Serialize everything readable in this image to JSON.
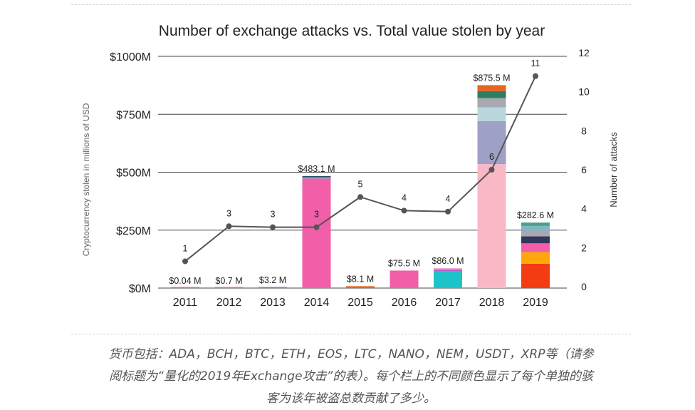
{
  "chart_data": {
    "type": "bar",
    "title": "Number of exchange attacks vs. Total value stolen by year",
    "ylabel": "Cryptocurrency stolen in millions of USD",
    "y2label": "Number of attacks",
    "categories": [
      "2011",
      "2012",
      "2013",
      "2014",
      "2015",
      "2016",
      "2017",
      "2018",
      "2019"
    ],
    "ylim": [
      0,
      1000
    ],
    "y2lim": [
      0,
      12
    ],
    "yticks": [
      {
        "value": 0,
        "label": "$0M"
      },
      {
        "value": 250,
        "label": "$250M"
      },
      {
        "value": 500,
        "label": "$500M"
      },
      {
        "value": 750,
        "label": "$750M"
      },
      {
        "value": 1000,
        "label": "$1000M"
      }
    ],
    "y2ticks": [
      {
        "value": 0,
        "label": "0"
      },
      {
        "value": 2,
        "label": "2"
      },
      {
        "value": 4,
        "label": "4"
      },
      {
        "value": 6,
        "label": "6"
      },
      {
        "value": 8,
        "label": "8"
      },
      {
        "value": 10,
        "label": "10"
      },
      {
        "value": 12,
        "label": "12"
      }
    ],
    "grid": true,
    "bars": [
      {
        "x": "2011",
        "label": "$0.04 M",
        "segments": [
          {
            "value": 0.04,
            "color": "#f05fa8"
          }
        ]
      },
      {
        "x": "2012",
        "label": "$0.7 M",
        "segments": [
          {
            "value": 0.7,
            "color": "#f05fa8"
          }
        ]
      },
      {
        "x": "2013",
        "label": "$3.2 M",
        "segments": [
          {
            "value": 3.2,
            "color": "#b45fd6"
          }
        ]
      },
      {
        "x": "2014",
        "label": "$483.1 M",
        "segments": [
          {
            "value": 473,
            "color": "#f05fa8"
          },
          {
            "value": 5,
            "color": "#4fb3a9"
          },
          {
            "value": 5.1,
            "color": "#2e4f6e"
          }
        ]
      },
      {
        "x": "2015",
        "label": "$8.1 M",
        "segments": [
          {
            "value": 8.1,
            "color": "#e8641f"
          }
        ]
      },
      {
        "x": "2016",
        "label": "$75.5 M",
        "segments": [
          {
            "value": 75.5,
            "color": "#f05fa8"
          }
        ]
      },
      {
        "x": "2017",
        "label": "$86.0 M",
        "segments": [
          {
            "value": 72,
            "color": "#1cc3c9"
          },
          {
            "value": 8,
            "color": "#b45fd6"
          },
          {
            "value": 6,
            "color": "#f8a6c4"
          }
        ]
      },
      {
        "x": "2018",
        "label": "$875.5 M",
        "segments": [
          {
            "value": 535,
            "color": "#f8b8c6"
          },
          {
            "value": 185,
            "color": "#9fa0c6"
          },
          {
            "value": 60,
            "color": "#b9d7dc"
          },
          {
            "value": 40,
            "color": "#a7a9ae"
          },
          {
            "value": 30,
            "color": "#2f7d63"
          },
          {
            "value": 25.5,
            "color": "#e8641f"
          }
        ]
      },
      {
        "x": "2019",
        "label": "$282.6 M",
        "segments": [
          {
            "value": 105,
            "color": "#f43c13"
          },
          {
            "value": 50,
            "color": "#ffa708"
          },
          {
            "value": 38,
            "color": "#f05fa8"
          },
          {
            "value": 30,
            "color": "#34365f"
          },
          {
            "value": 25,
            "color": "#a7a9ae"
          },
          {
            "value": 20,
            "color": "#7fb8c2"
          },
          {
            "value": 14.6,
            "color": "#4e9e88"
          }
        ]
      }
    ],
    "attacks": [
      {
        "x": "2011",
        "value": 1.3,
        "label": "1"
      },
      {
        "x": "2012",
        "value": 3.1,
        "label": "3"
      },
      {
        "x": "2013",
        "value": 3.05,
        "label": "3"
      },
      {
        "x": "2014",
        "value": 3.05,
        "label": "3"
      },
      {
        "x": "2015",
        "value": 4.6,
        "label": "5"
      },
      {
        "x": "2016",
        "value": 3.9,
        "label": "4"
      },
      {
        "x": "2017",
        "value": 3.85,
        "label": "4"
      },
      {
        "x": "2018",
        "value": 6.0,
        "label": "6"
      },
      {
        "x": "2019",
        "value": 10.8,
        "label": "11"
      }
    ],
    "line_color": "#555555"
  },
  "caption": {
    "lines": [
      "货币包括：ADA，BCH，BTC，ETH，EOS，LTC，NANO，NEM，USDT，XRP等（请参",
      "阅标题为“量化的2019年Exchange攻击”的表）。每个栏上的不同颜色显示了每个单独的骇",
      "客为该年被盗总数贡献了多少。"
    ]
  }
}
